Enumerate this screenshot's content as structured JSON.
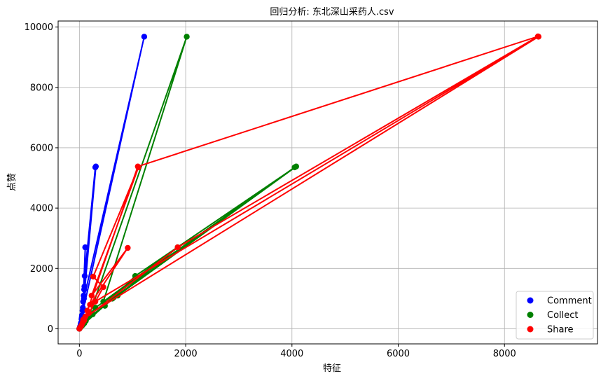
{
  "chart_data": {
    "type": "line",
    "title": "回归分析: 东北深山采药人.csv",
    "xlabel": "特征",
    "ylabel": "点赞",
    "xlim": [
      -400,
      9750
    ],
    "ylim": [
      -500,
      10200
    ],
    "xticks": [
      0,
      2000,
      4000,
      6000,
      8000
    ],
    "xtick_labels": [
      "0",
      "2000",
      "4000",
      "6000",
      "8000"
    ],
    "yticks": [
      0,
      2000,
      4000,
      6000,
      8000,
      10000
    ],
    "ytick_labels": [
      "0",
      "2000",
      "4000",
      "6000",
      "8000",
      "10000"
    ],
    "grid": true,
    "legend": "bottom-right",
    "series": [
      {
        "name": "Comment",
        "color": "#0000ff",
        "points": [
          [
            0,
            0
          ],
          [
            15,
            80
          ],
          [
            25,
            150
          ],
          [
            40,
            320
          ],
          [
            60,
            600
          ],
          [
            80,
            1100
          ],
          [
            100,
            1750
          ],
          [
            300,
            5350
          ],
          [
            90,
            1300
          ],
          [
            110,
            2700
          ],
          [
            70,
            900
          ],
          [
            1220,
            9680
          ],
          [
            50,
            450
          ],
          [
            30,
            200
          ],
          [
            20,
            100
          ],
          [
            85,
            1000
          ],
          [
            310,
            5380
          ],
          [
            95,
            1400
          ],
          [
            65,
            700
          ],
          [
            45,
            380
          ],
          [
            10,
            50
          ]
        ]
      },
      {
        "name": "Collect",
        "color": "#008000",
        "points": [
          [
            0,
            0
          ],
          [
            60,
            120
          ],
          [
            120,
            260
          ],
          [
            250,
            480
          ],
          [
            480,
            760
          ],
          [
            650,
            1050
          ],
          [
            1050,
            1750
          ],
          [
            4080,
            5380
          ],
          [
            720,
            1100
          ],
          [
            1850,
            2700
          ],
          [
            450,
            900
          ],
          [
            2020,
            9680
          ],
          [
            180,
            420
          ],
          [
            90,
            180
          ],
          [
            40,
            90
          ],
          [
            620,
            1000
          ],
          [
            4050,
            5350
          ],
          [
            1000,
            1550
          ],
          [
            300,
            700
          ],
          [
            150,
            380
          ],
          [
            20,
            50
          ]
        ]
      },
      {
        "name": "Share",
        "color": "#ff0000",
        "points": [
          [
            0,
            0
          ],
          [
            40,
            120
          ],
          [
            90,
            280
          ],
          [
            180,
            520
          ],
          [
            300,
            900
          ],
          [
            450,
            1380
          ],
          [
            260,
            1730
          ],
          [
            1110,
            5350
          ],
          [
            230,
            1100
          ],
          [
            910,
            2680
          ],
          [
            200,
            800
          ],
          [
            8640,
            9680
          ],
          [
            110,
            400
          ],
          [
            60,
            200
          ],
          [
            30,
            90
          ],
          [
            150,
            600
          ],
          [
            1100,
            5380
          ],
          [
            8630,
            9690
          ],
          [
            1850,
            2700
          ],
          [
            70,
            300
          ],
          [
            10,
            40
          ]
        ]
      }
    ]
  }
}
